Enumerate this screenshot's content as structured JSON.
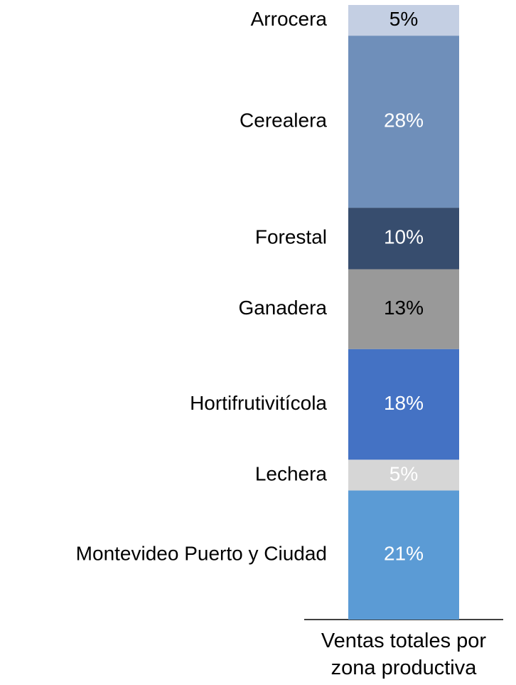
{
  "chart_data": {
    "type": "stacked_bar",
    "categories": [
      "Ventas totales por zona productiva"
    ],
    "ylim": [
      0,
      100
    ],
    "series": [
      {
        "name": "Arrocera",
        "color": "#c4cfe3",
        "label_color": "#000000",
        "values": [
          5
        ],
        "value_labels": [
          "5%"
        ]
      },
      {
        "name": "Cerealera",
        "color": "#6f8fba",
        "label_color": "#ffffff",
        "values": [
          28
        ],
        "value_labels": [
          "28%"
        ]
      },
      {
        "name": "Forestal",
        "color": "#374d6e",
        "label_color": "#ffffff",
        "values": [
          10
        ],
        "value_labels": [
          "10%"
        ]
      },
      {
        "name": "Ganadera",
        "color": "#999999",
        "label_color": "#000000",
        "values": [
          13
        ],
        "value_labels": [
          "13%"
        ]
      },
      {
        "name": "Hortifrutivitícola",
        "color": "#4472c4",
        "label_color": "#ffffff",
        "values": [
          18
        ],
        "value_labels": [
          "18%"
        ]
      },
      {
        "name": "Lechera",
        "color": "#d6d6d6",
        "label_color": "#ffffff",
        "values": [
          5
        ],
        "value_labels": [
          "5%"
        ]
      },
      {
        "name": "Montevideo Puerto y Ciudad",
        "color": "#5b9bd5",
        "label_color": "#ffffff",
        "values": [
          21
        ],
        "value_labels": [
          "21%"
        ]
      }
    ]
  }
}
